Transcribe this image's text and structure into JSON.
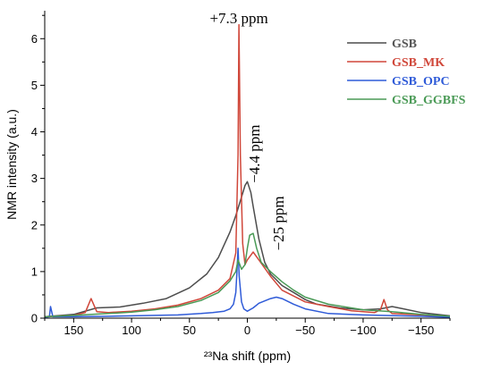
{
  "chart_data": {
    "type": "line",
    "title": "",
    "xlabel": "²³Na shift (ppm)",
    "ylabel": "NMR intensity (a.u.)",
    "xlim": [
      175,
      -175
    ],
    "ylim": [
      0,
      6.6
    ],
    "x_reversed": true,
    "xticks": [
      150,
      100,
      50,
      0,
      -50,
      -100,
      -150
    ],
    "xtick_labels": [
      "150",
      "100",
      "50",
      "0",
      "−50",
      "−100",
      "−150"
    ],
    "yticks": [
      0,
      1,
      2,
      3,
      4,
      5,
      6
    ],
    "ytick_labels": [
      "0",
      "1",
      "2",
      "3",
      "4",
      "5",
      "6"
    ],
    "grid": false,
    "legend_position": "top-right",
    "annotations": [
      {
        "text": "+7.3 ppm",
        "x": 7.3,
        "y": 6.45
      },
      {
        "text": "−4.4 ppm",
        "x": -4.4,
        "y": 2.9,
        "rotation": -90
      },
      {
        "text": "−25 ppm",
        "x": -25,
        "y": 1.45,
        "rotation": -90
      }
    ],
    "series": [
      {
        "name": "GSB",
        "color": "#4d4d4d",
        "x": [
          175,
          150,
          130,
          110,
          90,
          70,
          50,
          35,
          25,
          15,
          10,
          5,
          2,
          0,
          -3,
          -5,
          -10,
          -15,
          -20,
          -30,
          -40,
          -50,
          -60,
          -80,
          -100,
          -115,
          -125,
          -135,
          -150,
          -175
        ],
        "y": [
          0.03,
          0.08,
          0.22,
          0.24,
          0.32,
          0.42,
          0.65,
          0.95,
          1.3,
          1.85,
          2.2,
          2.6,
          2.85,
          2.93,
          2.7,
          2.4,
          1.7,
          1.2,
          0.95,
          0.7,
          0.55,
          0.4,
          0.3,
          0.22,
          0.18,
          0.2,
          0.25,
          0.2,
          0.12,
          0.05
        ]
      },
      {
        "name": "GSB_MK",
        "color": "#d0473a",
        "x": [
          175,
          150,
          140,
          135,
          130,
          120,
          100,
          80,
          60,
          40,
          25,
          15,
          10,
          8,
          7.3,
          6,
          4,
          2,
          0,
          -5,
          -10,
          -20,
          -30,
          -50,
          -70,
          -90,
          -110,
          -115,
          -118,
          -121,
          -125,
          -150,
          -175
        ],
        "y": [
          0.03,
          0.06,
          0.12,
          0.42,
          0.14,
          0.12,
          0.15,
          0.2,
          0.28,
          0.42,
          0.6,
          0.85,
          1.4,
          3.5,
          6.3,
          3.5,
          1.6,
          1.15,
          1.25,
          1.42,
          1.25,
          0.9,
          0.6,
          0.35,
          0.25,
          0.16,
          0.12,
          0.18,
          0.4,
          0.18,
          0.1,
          0.07,
          0.03
        ]
      },
      {
        "name": "GSB_OPC",
        "color": "#2f5bd8",
        "x": [
          175,
          171,
          170,
          168,
          150,
          120,
          100,
          60,
          40,
          30,
          20,
          15,
          12,
          10,
          9,
          8,
          7,
          5,
          3,
          0,
          -5,
          -10,
          -20,
          -25,
          -30,
          -40,
          -50,
          -70,
          -100,
          -150,
          -175
        ],
        "y": [
          0.02,
          0.03,
          0.25,
          0.03,
          0.03,
          0.04,
          0.05,
          0.07,
          0.1,
          0.12,
          0.15,
          0.2,
          0.3,
          0.55,
          1.0,
          1.5,
          0.9,
          0.35,
          0.2,
          0.15,
          0.22,
          0.32,
          0.42,
          0.45,
          0.42,
          0.3,
          0.2,
          0.1,
          0.07,
          0.04,
          0.02
        ]
      },
      {
        "name": "GSB_GGBFS",
        "color": "#4a9a56",
        "x": [
          175,
          150,
          120,
          100,
          80,
          60,
          40,
          25,
          15,
          10,
          8,
          5,
          2,
          0,
          -2,
          -5,
          -8,
          -12,
          -20,
          -30,
          -40,
          -50,
          -70,
          -100,
          -125,
          -150,
          -175
        ],
        "y": [
          0.03,
          0.06,
          0.1,
          0.13,
          0.18,
          0.25,
          0.38,
          0.55,
          0.8,
          1.0,
          1.25,
          1.05,
          1.15,
          1.5,
          1.78,
          1.82,
          1.5,
          1.2,
          1.0,
          0.78,
          0.6,
          0.45,
          0.3,
          0.18,
          0.14,
          0.08,
          0.04
        ]
      }
    ]
  }
}
